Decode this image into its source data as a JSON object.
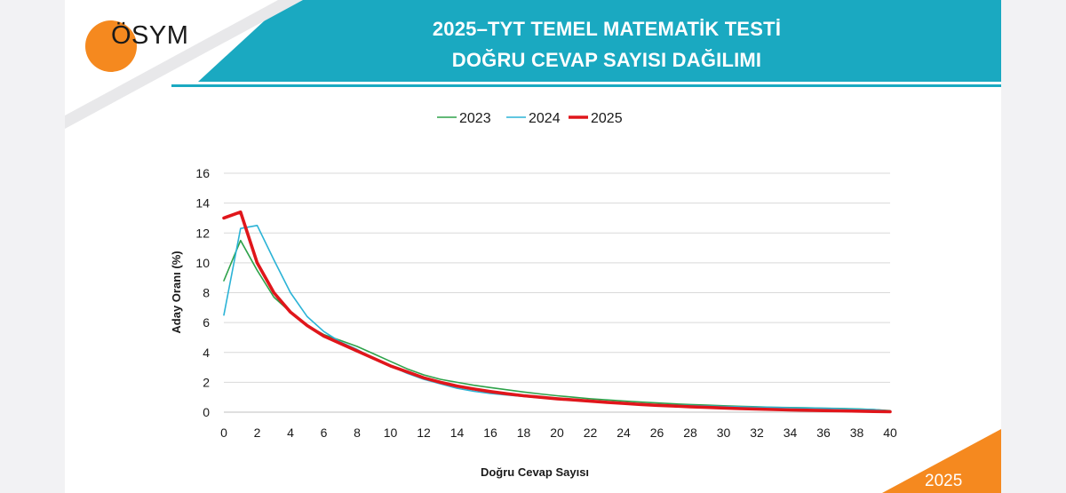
{
  "header": {
    "title_line1": "2025–TYT TEMEL MATEMATİK TESTİ",
    "title_line2": "DOĞRU CEVAP SAYISI DAĞILIMI",
    "logo_text": "ÖSYM"
  },
  "footer": {
    "year": "2025"
  },
  "colors": {
    "header_teal": "#1aa9c1",
    "logo_orange": "#f5891f",
    "series_2023": "#2ea24a",
    "series_2024": "#2bb3d6",
    "series_2025": "#e0161b"
  },
  "chart_data": {
    "type": "line",
    "xlabel": "Doğru Cevap Sayısı",
    "ylabel": "Aday Oranı (%)",
    "xlim": [
      0,
      40
    ],
    "ylim": [
      0,
      16
    ],
    "xticks": [
      0,
      2,
      4,
      6,
      8,
      10,
      12,
      14,
      16,
      18,
      20,
      22,
      24,
      26,
      28,
      30,
      32,
      34,
      36,
      38,
      40
    ],
    "yticks": [
      0,
      2,
      4,
      6,
      8,
      10,
      12,
      14,
      16
    ],
    "grid": "horizontal",
    "legend_position": "top",
    "x": [
      0,
      1,
      2,
      3,
      4,
      5,
      6,
      7,
      8,
      9,
      10,
      11,
      12,
      13,
      14,
      15,
      16,
      17,
      18,
      19,
      20,
      21,
      22,
      23,
      24,
      25,
      26,
      27,
      28,
      29,
      30,
      31,
      32,
      33,
      34,
      35,
      36,
      37,
      38,
      39,
      40
    ],
    "series": [
      {
        "name": "2023",
        "color": "#2ea24a",
        "width": 1.6,
        "values": [
          8.8,
          11.5,
          9.5,
          7.7,
          6.7,
          5.8,
          5.2,
          4.8,
          4.4,
          3.9,
          3.4,
          2.9,
          2.5,
          2.2,
          2.0,
          1.8,
          1.65,
          1.5,
          1.35,
          1.22,
          1.1,
          1.0,
          0.9,
          0.82,
          0.75,
          0.68,
          0.62,
          0.56,
          0.51,
          0.47,
          0.43,
          0.39,
          0.36,
          0.33,
          0.31,
          0.29,
          0.27,
          0.25,
          0.22,
          0.18,
          0.1
        ]
      },
      {
        "name": "2024",
        "color": "#2bb3d6",
        "width": 1.6,
        "values": [
          6.5,
          12.3,
          12.5,
          10.2,
          8.0,
          6.4,
          5.4,
          4.7,
          4.2,
          3.6,
          3.1,
          2.6,
          2.2,
          1.9,
          1.6,
          1.4,
          1.25,
          1.15,
          1.05,
          0.95,
          0.88,
          0.8,
          0.73,
          0.67,
          0.61,
          0.56,
          0.51,
          0.47,
          0.44,
          0.41,
          0.38,
          0.36,
          0.34,
          0.32,
          0.3,
          0.28,
          0.26,
          0.24,
          0.21,
          0.17,
          0.08
        ]
      },
      {
        "name": "2025",
        "color": "#e0161b",
        "width": 3.6,
        "values": [
          13.0,
          13.4,
          10.0,
          8.0,
          6.7,
          5.8,
          5.1,
          4.6,
          4.1,
          3.6,
          3.1,
          2.7,
          2.3,
          2.0,
          1.75,
          1.55,
          1.38,
          1.23,
          1.1,
          1.0,
          0.9,
          0.82,
          0.74,
          0.66,
          0.59,
          0.52,
          0.46,
          0.41,
          0.36,
          0.32,
          0.28,
          0.24,
          0.21,
          0.18,
          0.15,
          0.13,
          0.11,
          0.09,
          0.07,
          0.05,
          0.03
        ]
      }
    ]
  }
}
